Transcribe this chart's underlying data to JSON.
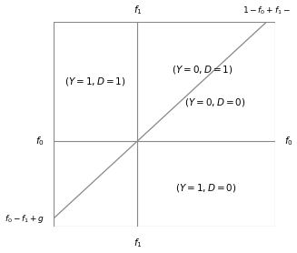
{
  "f0": 0.42,
  "f1": 0.38,
  "g": 0.08,
  "top_label_f1": "$f_1$",
  "top_label_right": "$1 - f_0 + f_1 -$",
  "bottom_label": "$f_1$",
  "left_label_f0": "$f_0$",
  "right_label_f0": "$f_0$",
  "left_label_bottom": "$f_0 - f_1 + g$",
  "region_Y1D1": "$(Y=1, D=1)$",
  "region_Y0D1": "$(Y=0, D=1)$",
  "region_Y0D0": "$(Y=0, D=0)$",
  "region_Y1D0": "$(Y=1, D=0)$",
  "line_color": "#888888",
  "fontsize_labels": 7.5,
  "fontsize_region": 7.5,
  "figsize": [
    3.27,
    2.78
  ],
  "dpi": 100
}
